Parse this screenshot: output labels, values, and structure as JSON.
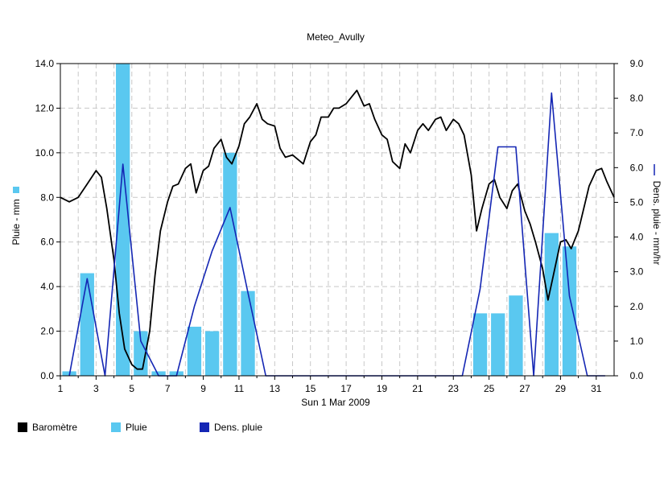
{
  "chart_data": {
    "type": "bar+line",
    "title": "Meteo_Avully",
    "xlabel": "Sun 1 Mar 2009",
    "ylabel_left": "Pluie - mm",
    "ylabel_right": "Dens. pluie - mm/hr",
    "xlim": [
      1,
      32
    ],
    "ylim_left": [
      0,
      14
    ],
    "ylim_right": [
      0,
      9
    ],
    "x_ticks": [
      "1",
      "3",
      "5",
      "7",
      "9",
      "11",
      "13",
      "15",
      "17",
      "19",
      "21",
      "23",
      "25",
      "27",
      "29",
      "31"
    ],
    "y_ticks_left": [
      "0.0",
      "2.0",
      "4.0",
      "6.0",
      "8.0",
      "10.0",
      "12.0",
      "14.0"
    ],
    "y_ticks_right": [
      "0.0",
      "1.0",
      "2.0",
      "3.0",
      "4.0",
      "5.0",
      "6.0",
      "7.0",
      "8.0",
      "9.0"
    ],
    "grid": true,
    "legend_position": "bottom-left",
    "series": [
      {
        "name": "Baromètre",
        "type": "line",
        "axis": "left",
        "color": "#000000",
        "x": [
          1.0,
          1.5,
          2.0,
          2.5,
          3.0,
          3.3,
          3.6,
          4.0,
          4.3,
          4.6,
          5.0,
          5.3,
          5.6,
          6.0,
          6.3,
          6.6,
          7.0,
          7.3,
          7.6,
          8.0,
          8.3,
          8.6,
          9.0,
          9.3,
          9.6,
          10.0,
          10.3,
          10.6,
          11.0,
          11.3,
          11.6,
          12.0,
          12.3,
          12.6,
          13.0,
          13.3,
          13.6,
          14.0,
          14.3,
          14.6,
          15.0,
          15.3,
          15.6,
          16.0,
          16.3,
          16.6,
          17.0,
          17.3,
          17.6,
          18.0,
          18.3,
          18.6,
          19.0,
          19.3,
          19.6,
          20.0,
          20.3,
          20.6,
          21.0,
          21.3,
          21.6,
          22.0,
          22.3,
          22.6,
          23.0,
          23.3,
          23.6,
          24.0,
          24.3,
          24.6,
          25.0,
          25.3,
          25.6,
          26.0,
          26.3,
          26.6,
          27.0,
          27.3,
          27.6,
          28.0,
          28.3,
          28.6,
          29.0,
          29.3,
          29.6,
          30.0,
          30.3,
          30.6,
          31.0,
          31.3,
          31.6,
          32.0
        ],
        "values": [
          8.0,
          7.8,
          8.0,
          8.6,
          9.2,
          8.9,
          7.5,
          5.2,
          2.8,
          1.2,
          0.5,
          0.3,
          0.3,
          2.0,
          4.5,
          6.5,
          7.8,
          8.5,
          8.6,
          9.3,
          9.5,
          8.2,
          9.2,
          9.4,
          10.2,
          10.6,
          9.8,
          9.5,
          10.3,
          11.3,
          11.6,
          12.2,
          11.5,
          11.3,
          11.2,
          10.2,
          9.8,
          9.9,
          9.7,
          9.5,
          10.5,
          10.8,
          11.6,
          11.6,
          12.0,
          12.0,
          12.2,
          12.5,
          12.8,
          12.1,
          12.2,
          11.5,
          10.8,
          10.6,
          9.6,
          9.3,
          10.4,
          10.0,
          11.0,
          11.3,
          11.0,
          11.5,
          11.6,
          11.0,
          11.5,
          11.3,
          10.8,
          9.0,
          6.5,
          7.5,
          8.6,
          8.8,
          8.0,
          7.5,
          8.3,
          8.6,
          7.4,
          6.8,
          6.0,
          4.8,
          3.4,
          4.5,
          6.0,
          6.1,
          5.7,
          6.5,
          7.5,
          8.5,
          9.2,
          9.3,
          8.7,
          8.0
        ]
      },
      {
        "name": "Pluie",
        "type": "bar",
        "axis": "left",
        "color": "#5ac8f0",
        "x": [
          1.5,
          2.5,
          4.5,
          5.5,
          6.5,
          7.5,
          8.5,
          9.5,
          10.5,
          11.5,
          24.5,
          25.5,
          26.5,
          28.5,
          29.5
        ],
        "values": [
          0.2,
          4.6,
          14.0,
          2.0,
          0.2,
          0.2,
          2.2,
          2.0,
          10.0,
          3.8,
          2.8,
          2.8,
          3.6,
          6.4,
          5.8
        ]
      },
      {
        "name": "Dens. pluie",
        "type": "line",
        "axis": "right",
        "color": "#1426b4",
        "x": [
          1.5,
          2.5,
          3.5,
          4.5,
          5.5,
          6.5,
          7.5,
          8.5,
          9.5,
          10.5,
          11.5,
          12.5,
          13.5,
          14.5,
          15.5,
          16.5,
          17.5,
          18.5,
          19.5,
          20.5,
          21.5,
          22.5,
          23.5,
          24.5,
          25.5,
          26.5,
          27.5,
          28.5,
          29.5,
          30.5,
          31.5
        ],
        "values": [
          0.0,
          2.8,
          0.0,
          6.1,
          1.0,
          0.0,
          0.0,
          2.0,
          3.6,
          4.85,
          2.4,
          0.0,
          0.0,
          0.0,
          0.0,
          0.0,
          0.0,
          0.0,
          0.0,
          0.0,
          0.0,
          0.0,
          0.0,
          2.5,
          6.6,
          6.6,
          0.0,
          8.15,
          2.3,
          0.0,
          0.0
        ]
      }
    ]
  },
  "legend": {
    "barometre": "Baromètre",
    "pluie": "Pluie",
    "dens_pluie": "Dens. pluie"
  }
}
